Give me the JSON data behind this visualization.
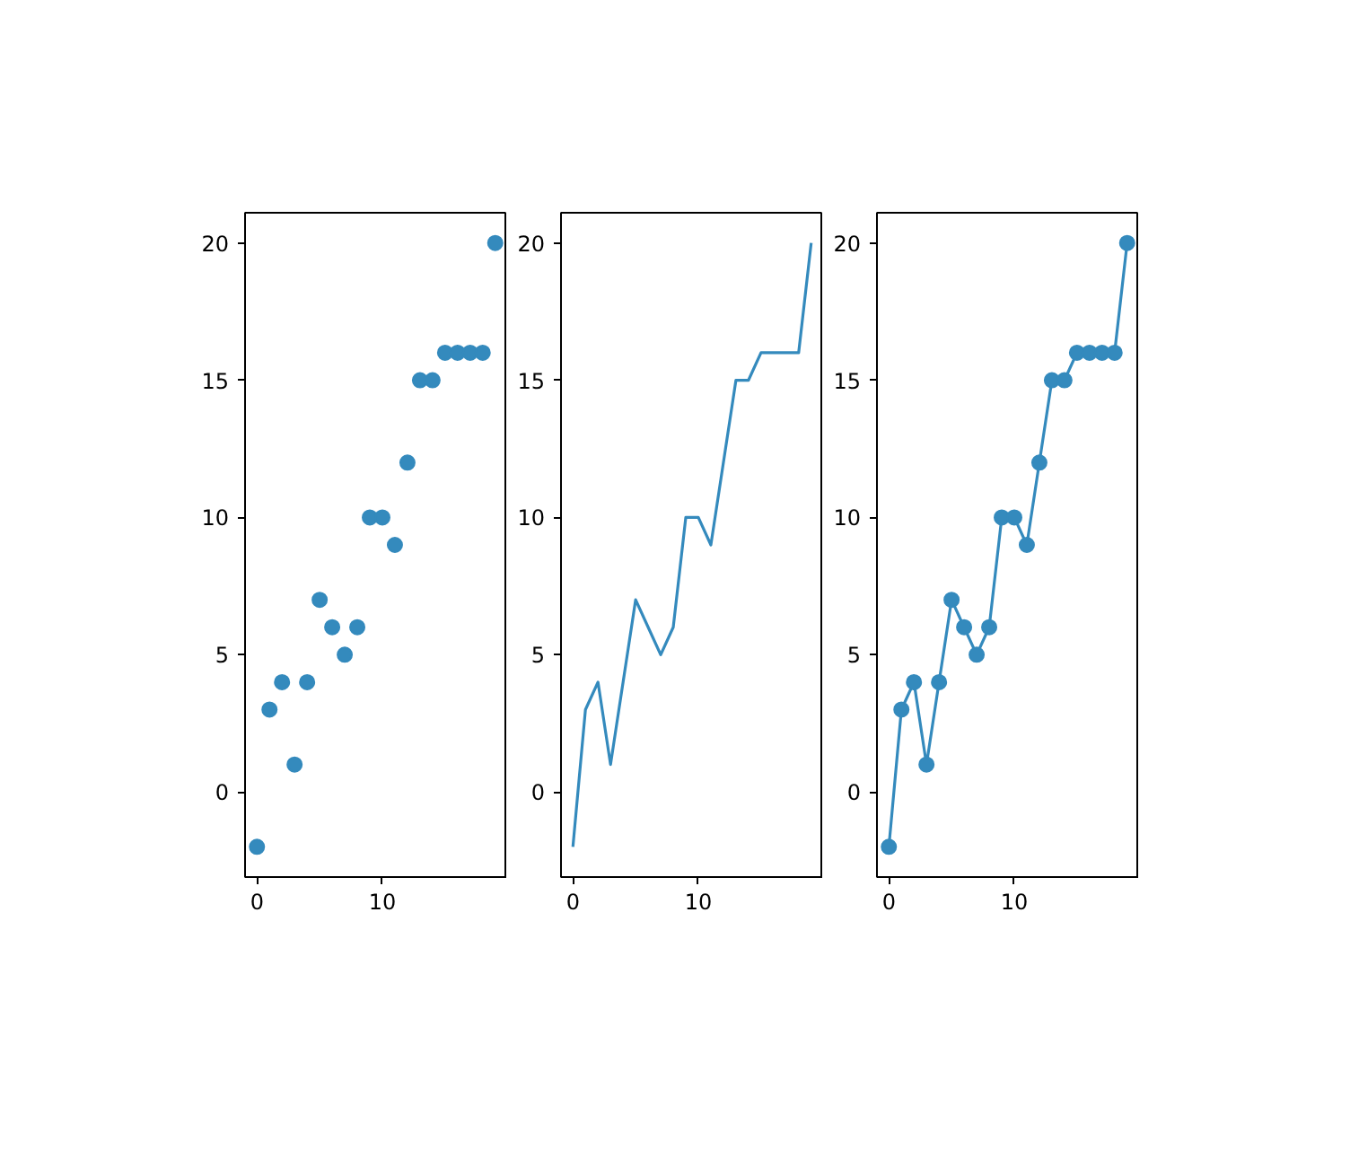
{
  "chart_data": [
    {
      "type": "scatter",
      "marker": "circle",
      "x": [
        0,
        1,
        2,
        3,
        4,
        5,
        6,
        7,
        8,
        9,
        10,
        11,
        12,
        13,
        14,
        15,
        16,
        17,
        18,
        19
      ],
      "values": [
        -2,
        3,
        4,
        1,
        4,
        7,
        6,
        5,
        6,
        10,
        10,
        9,
        12,
        15,
        15,
        16,
        16,
        16,
        16,
        20
      ],
      "color": "#348abd",
      "xlim": [
        -0.95,
        19.95
      ],
      "ylim": [
        -3.1,
        21.1
      ],
      "xticks": [
        0,
        10
      ],
      "yticks": [
        0,
        5,
        10,
        15,
        20
      ]
    },
    {
      "type": "line",
      "x": [
        0,
        1,
        2,
        3,
        4,
        5,
        6,
        7,
        8,
        9,
        10,
        11,
        12,
        13,
        14,
        15,
        16,
        17,
        18,
        19
      ],
      "values": [
        -2,
        3,
        4,
        1,
        4,
        7,
        6,
        5,
        6,
        10,
        10,
        9,
        12,
        15,
        15,
        16,
        16,
        16,
        16,
        20
      ],
      "color": "#348abd",
      "xlim": [
        -0.95,
        19.95
      ],
      "ylim": [
        -3.1,
        21.1
      ],
      "xticks": [
        0,
        10
      ],
      "yticks": [
        0,
        5,
        10,
        15,
        20
      ]
    },
    {
      "type": "line",
      "marker": "circle",
      "x": [
        0,
        1,
        2,
        3,
        4,
        5,
        6,
        7,
        8,
        9,
        10,
        11,
        12,
        13,
        14,
        15,
        16,
        17,
        18,
        19
      ],
      "values": [
        -2,
        3,
        4,
        1,
        4,
        7,
        6,
        5,
        6,
        10,
        10,
        9,
        12,
        15,
        15,
        16,
        16,
        16,
        16,
        20
      ],
      "color": "#348abd",
      "xlim": [
        -0.95,
        19.95
      ],
      "ylim": [
        -3.1,
        21.1
      ],
      "xticks": [
        0,
        10
      ],
      "yticks": [
        0,
        5,
        10,
        15,
        20
      ]
    }
  ]
}
